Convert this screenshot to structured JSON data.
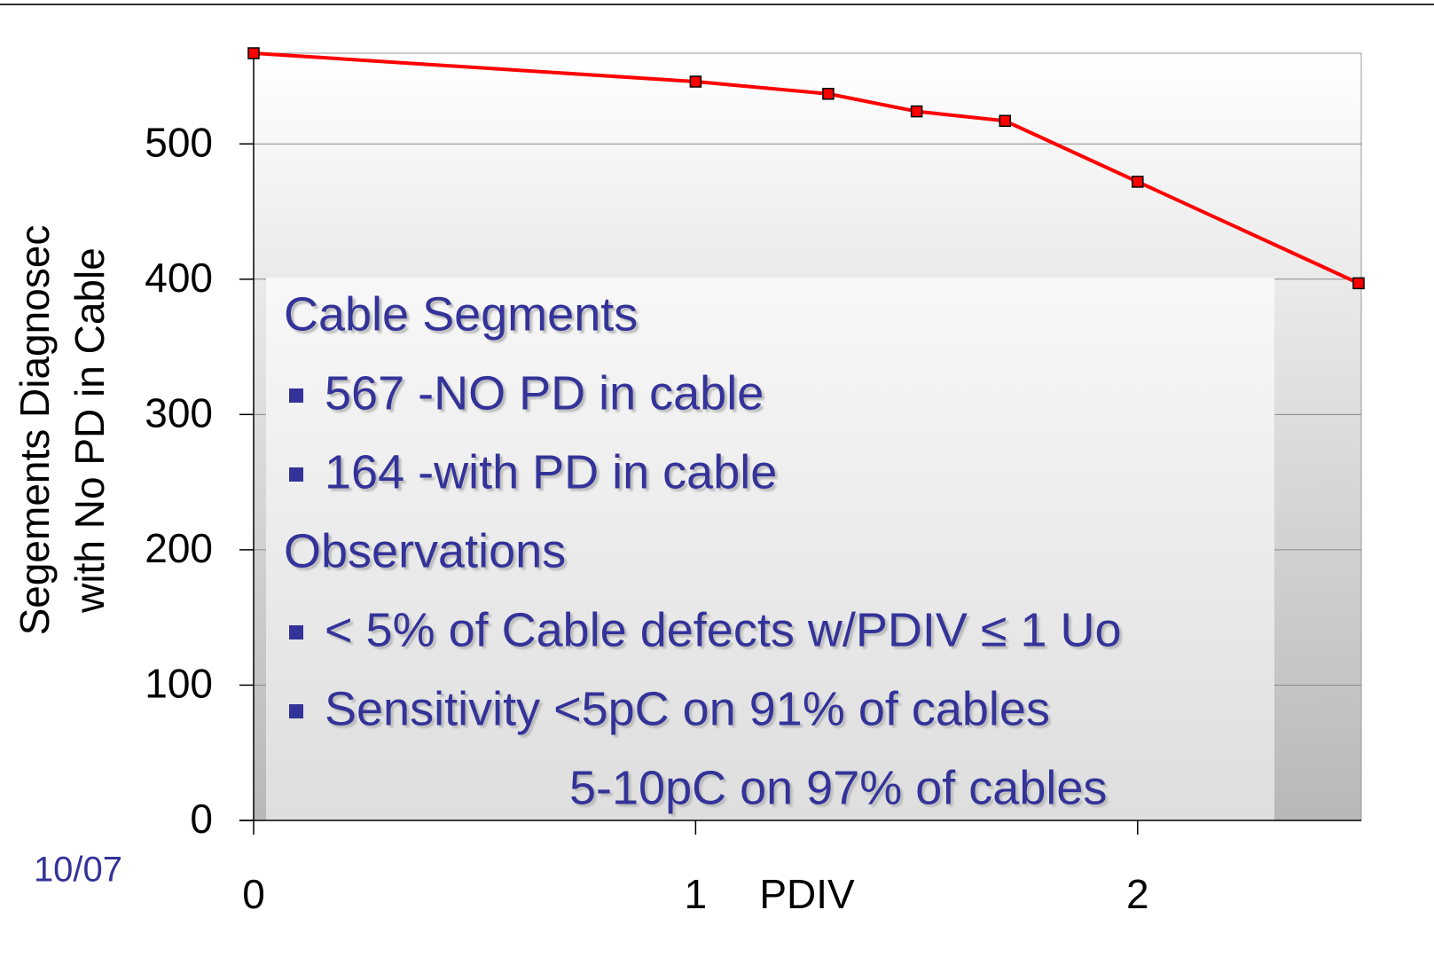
{
  "chart_data": {
    "type": "line",
    "x": [
      0,
      1,
      1.3,
      1.5,
      1.7,
      2,
      2.5
    ],
    "series": [
      {
        "name": "Segments",
        "color": "#ff0000",
        "values": [
          567,
          546,
          537,
          524,
          517,
          472,
          397
        ]
      }
    ],
    "xlim": [
      0,
      2.5
    ],
    "xticks": [
      0,
      1,
      2
    ],
    "xlabel": "PDIV",
    "ylim": [
      0,
      567
    ],
    "yticks": [
      0,
      100,
      200,
      300,
      400,
      500
    ],
    "ylabel": [
      "Segements Diagnosec",
      "with No PD in Cable"
    ],
    "grid": true,
    "footer": "10/07",
    "annotation": {
      "heading1": "Cable Segments",
      "items1": [
        "567 -NO PD in cable",
        "164 -with PD in cable"
      ],
      "heading2": "Observations",
      "items2": [
        "< 5% of Cable defects w/PDIV ≤ 1 Uo",
        "Sensitivity <5pC on 91% of cables"
      ],
      "continuation": "5-10pC on 97% of cables"
    }
  }
}
